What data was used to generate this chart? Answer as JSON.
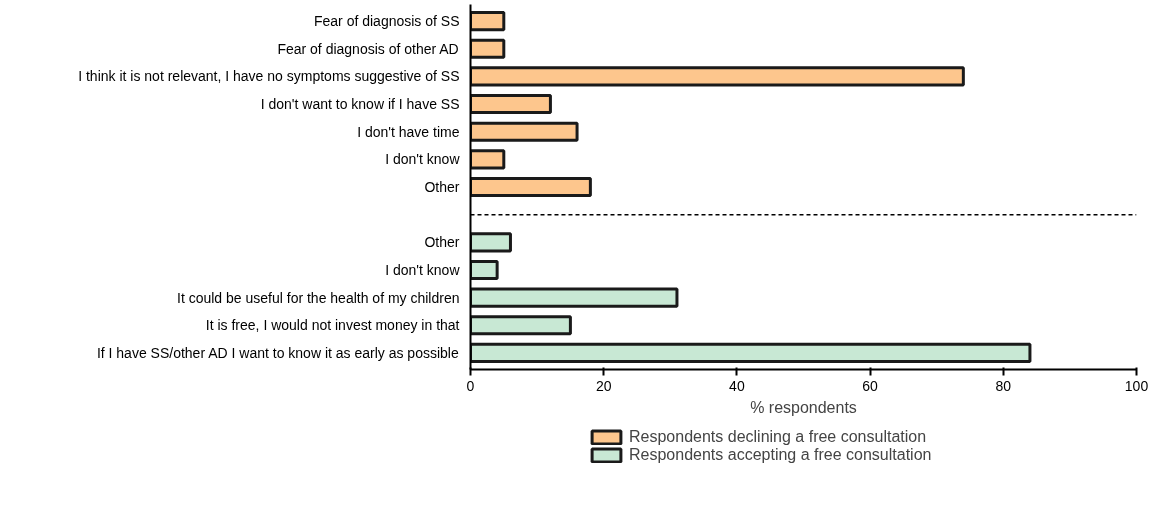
{
  "chart_data": {
    "type": "bar",
    "orientation": "horizontal",
    "xlabel": "% respondents",
    "categories": [
      "Fear of diagnosis of SS",
      "Fear of diagnosis of other AD",
      "I think it is not relevant, I have no symptoms suggestive of SS",
      "I don't want to know if I have SS",
      "I don't have time",
      "I don't know",
      "Other",
      null,
      "Other",
      "I don't know",
      "It could be useful for the health of my children",
      "It is free, I would not invest money in that",
      "If I have SS/other AD I want to know it as early as possible"
    ],
    "series": [
      {
        "name": "Respondents declining a free consultation",
        "color": "#fdc68d",
        "values": [
          5,
          5,
          74,
          12,
          16,
          5,
          18,
          null,
          null,
          null,
          null,
          null,
          null
        ]
      },
      {
        "name": "Respondents accepting a free consultation",
        "color": "#c8e8d4",
        "values": [
          null,
          null,
          null,
          null,
          null,
          null,
          null,
          null,
          6,
          4,
          31,
          15,
          84
        ]
      }
    ],
    "xlim": [
      0,
      100
    ],
    "xticks": [
      0,
      20,
      40,
      60,
      80,
      100
    ],
    "grid": false,
    "legend": "bottom",
    "ref_lines": [
      {
        "axis": "y",
        "value": null,
        "line_style": "dashed",
        "color": "#000000"
      }
    ]
  }
}
